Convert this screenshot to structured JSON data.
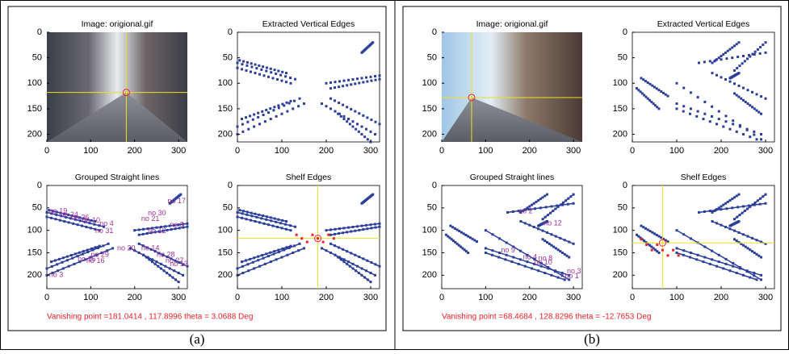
{
  "panels": [
    {
      "caption": "(a)",
      "vanishing_text": "Vanishing point =181.0414 , 117.8996 theta = 3.0688 Deg",
      "plots": [
        {
          "title": "Image: origional.gif",
          "xticks": [
            0,
            100,
            200,
            300
          ],
          "yticks": [
            0,
            50,
            100,
            150,
            200
          ]
        },
        {
          "title": "Extracted Vertical Edges",
          "xticks": [
            0,
            100,
            200,
            300
          ],
          "yticks": [
            0,
            50,
            100,
            150,
            200
          ]
        },
        {
          "title": "Grouped Straight lines",
          "xticks": [
            0,
            100,
            200,
            300
          ],
          "yticks": [
            0,
            50,
            100,
            150,
            200
          ],
          "labels": [
            "no 17",
            "no 30",
            "no 19",
            "no 24",
            "no 26",
            "no 10",
            "no 4",
            "no 21",
            "no 8",
            "no 31",
            "no 12",
            "no 20",
            "no 14",
            "no 28",
            "no 29",
            "no 27",
            "no 13",
            "no 15",
            "no 16",
            "no 3"
          ]
        },
        {
          "title": "Shelf Edges",
          "xticks": [
            0,
            100,
            200,
            300
          ],
          "yticks": [
            0,
            50,
            100,
            150,
            200
          ]
        }
      ]
    },
    {
      "caption": "(b)",
      "vanishing_text": "Vanishing point =68.4684 , 128.8296 theta = -12.7653 Deg",
      "plots": [
        {
          "title": "Image: origional.gif",
          "xticks": [
            0,
            100,
            200,
            300
          ],
          "yticks": [
            0,
            50,
            100,
            150,
            200
          ]
        },
        {
          "title": "Extracted Vertical Edges",
          "xticks": [
            0,
            100,
            200,
            300
          ],
          "yticks": [
            0,
            50,
            100,
            150,
            200
          ]
        },
        {
          "title": "Grouped Straight lines",
          "xticks": [
            0,
            100,
            200,
            300
          ],
          "yticks": [
            0,
            50,
            100,
            150,
            200
          ],
          "labels": [
            "no 2",
            "no 12",
            "no 9",
            "no 4",
            "no 8",
            "no 10",
            "no 3",
            "no 1"
          ]
        },
        {
          "title": "Shelf Edges",
          "xticks": [
            0,
            100,
            200,
            300
          ],
          "yticks": [
            0,
            50,
            100,
            150,
            200
          ]
        }
      ]
    }
  ]
}
